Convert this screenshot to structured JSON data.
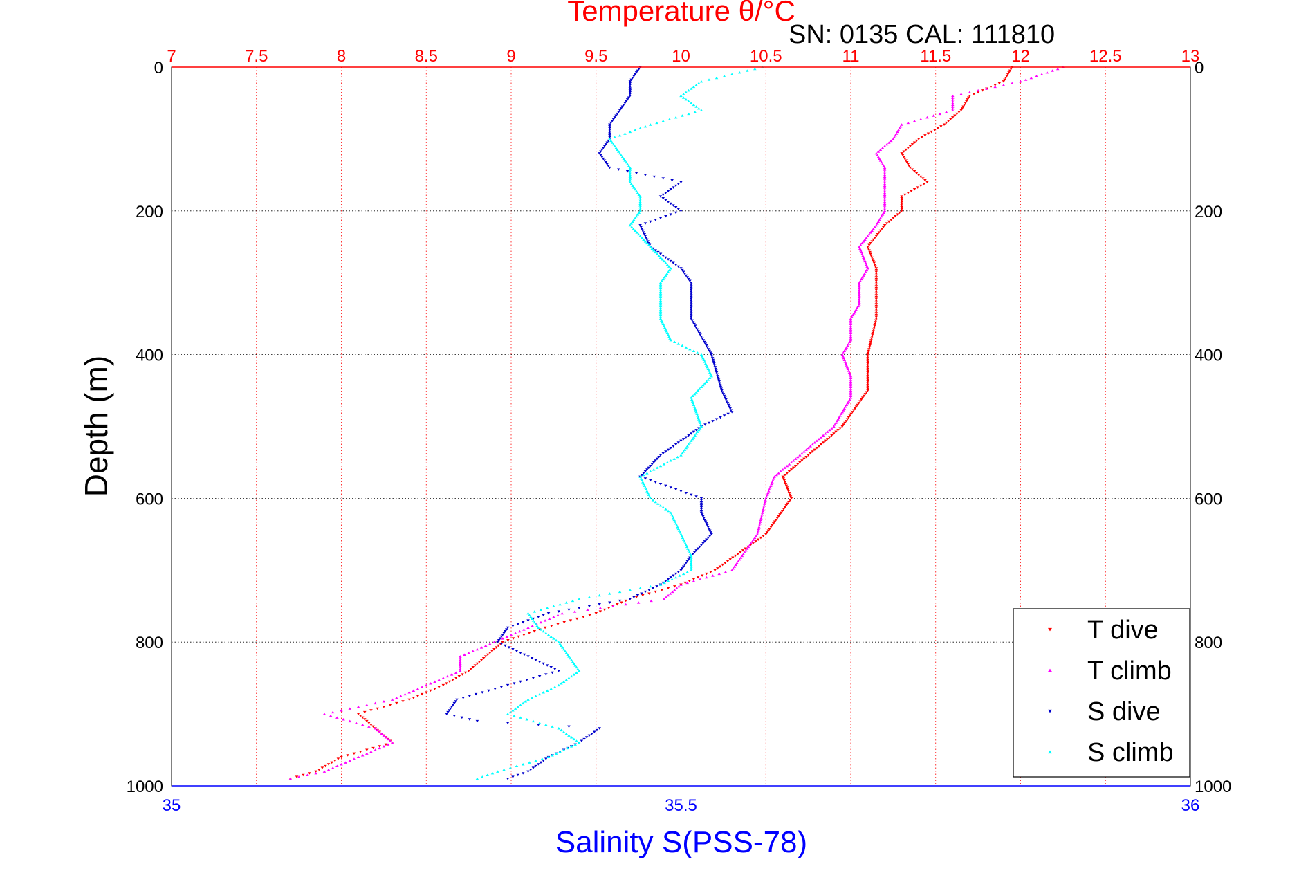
{
  "chart_data": {
    "type": "scatter",
    "title": "Temperature θ/°C",
    "subtitle": "SN: 0135  CAL: 111810",
    "ylabel": "Depth (m)",
    "xlabel": "Salinity S(PSS-78)",
    "ylim": [
      0,
      1000
    ],
    "y_reversed": true,
    "yticks": [
      "0",
      "200",
      "400",
      "600",
      "800",
      "1000"
    ],
    "x_temp": {
      "range": [
        7,
        13
      ],
      "ticks": [
        "7",
        "7.5",
        "8",
        "8.5",
        "9",
        "9.5",
        "10",
        "10.5",
        "11",
        "11.5",
        "12",
        "12.5",
        "13"
      ]
    },
    "x_sal": {
      "range": [
        35,
        36
      ],
      "ticks": [
        "35",
        "35.5",
        "36"
      ]
    },
    "grid": true,
    "legend_position": "bottom-right",
    "colors": {
      "t_axis": "#ff0000",
      "s_axis": "#0000ff",
      "t_dive": "#ff0000",
      "t_climb": "#ff00ff",
      "s_dive": "#0000cc",
      "s_climb": "#00ffff"
    },
    "series": [
      {
        "name": "T dive",
        "axis": "temperature",
        "marker": "down-triangle",
        "depth": [
          0,
          20,
          40,
          60,
          80,
          100,
          120,
          140,
          160,
          180,
          200,
          220,
          250,
          280,
          300,
          350,
          400,
          450,
          500,
          540,
          570,
          600,
          650,
          700,
          720,
          740,
          760,
          780,
          800,
          820,
          840,
          860,
          880,
          900,
          920,
          940,
          960,
          980,
          990
        ],
        "values": [
          11.95,
          11.9,
          11.7,
          11.65,
          11.55,
          11.4,
          11.3,
          11.35,
          11.45,
          11.3,
          11.3,
          11.2,
          11.1,
          11.15,
          11.15,
          11.15,
          11.1,
          11.1,
          10.95,
          10.75,
          10.6,
          10.65,
          10.5,
          10.2,
          10.0,
          9.7,
          9.5,
          9.2,
          8.95,
          8.85,
          8.75,
          8.6,
          8.4,
          8.1,
          8.2,
          8.3,
          8.0,
          7.85,
          7.7
        ]
      },
      {
        "name": "T climb",
        "axis": "temperature",
        "marker": "up-triangle",
        "depth": [
          0,
          20,
          40,
          60,
          80,
          100,
          120,
          140,
          160,
          180,
          200,
          220,
          250,
          280,
          300,
          330,
          350,
          380,
          400,
          430,
          460,
          500,
          540,
          570,
          600,
          650,
          700,
          720,
          740,
          760,
          780,
          800,
          820,
          840,
          860,
          880,
          900,
          920,
          940,
          960,
          980,
          990
        ],
        "values": [
          12.25,
          12.0,
          11.6,
          11.6,
          11.3,
          11.25,
          11.15,
          11.2,
          11.2,
          11.2,
          11.2,
          11.15,
          11.05,
          11.1,
          11.05,
          11.05,
          11.0,
          11.0,
          10.95,
          11.0,
          11.0,
          10.9,
          10.7,
          10.55,
          10.5,
          10.45,
          10.3,
          10.0,
          9.9,
          9.3,
          9.1,
          8.9,
          8.7,
          8.7,
          8.5,
          8.3,
          7.9,
          8.2,
          8.3,
          8.1,
          7.9,
          7.7
        ]
      },
      {
        "name": "S dive",
        "axis": "salinity",
        "marker": "down-triangle",
        "depth": [
          0,
          20,
          40,
          60,
          80,
          100,
          120,
          140,
          160,
          180,
          200,
          220,
          250,
          280,
          300,
          350,
          400,
          450,
          480,
          500,
          540,
          570,
          600,
          620,
          650,
          680,
          700,
          720,
          740,
          760,
          780,
          800,
          820,
          840,
          860,
          880,
          900,
          910,
          920,
          940,
          960,
          980,
          990
        ],
        "values": [
          35.46,
          35.45,
          35.45,
          35.44,
          35.43,
          35.43,
          35.42,
          35.43,
          35.5,
          35.48,
          35.5,
          35.46,
          35.47,
          35.5,
          35.51,
          35.51,
          35.53,
          35.54,
          35.55,
          35.52,
          35.48,
          35.46,
          35.52,
          35.52,
          35.53,
          35.51,
          35.5,
          35.48,
          35.45,
          35.37,
          35.33,
          35.32,
          35.35,
          35.38,
          35.33,
          35.28,
          35.27,
          35.3,
          35.42,
          35.4,
          35.37,
          35.35,
          35.33
        ]
      },
      {
        "name": "S climb",
        "axis": "salinity",
        "marker": "up-triangle",
        "depth": [
          0,
          20,
          40,
          60,
          80,
          100,
          120,
          140,
          160,
          180,
          200,
          220,
          250,
          280,
          300,
          330,
          350,
          380,
          400,
          430,
          460,
          500,
          540,
          570,
          600,
          620,
          650,
          680,
          700,
          720,
          740,
          760,
          780,
          800,
          820,
          840,
          860,
          880,
          900,
          920,
          940,
          960,
          980,
          990
        ],
        "values": [
          35.58,
          35.52,
          35.5,
          35.52,
          35.47,
          35.43,
          35.44,
          35.45,
          35.45,
          35.46,
          35.46,
          35.45,
          35.47,
          35.49,
          35.48,
          35.48,
          35.48,
          35.49,
          35.52,
          35.53,
          35.51,
          35.52,
          35.5,
          35.46,
          35.47,
          35.49,
          35.5,
          35.51,
          35.51,
          35.48,
          35.4,
          35.35,
          35.36,
          35.38,
          35.39,
          35.4,
          35.38,
          35.35,
          35.33,
          35.38,
          35.4,
          35.37,
          35.32,
          35.3
        ]
      }
    ]
  }
}
